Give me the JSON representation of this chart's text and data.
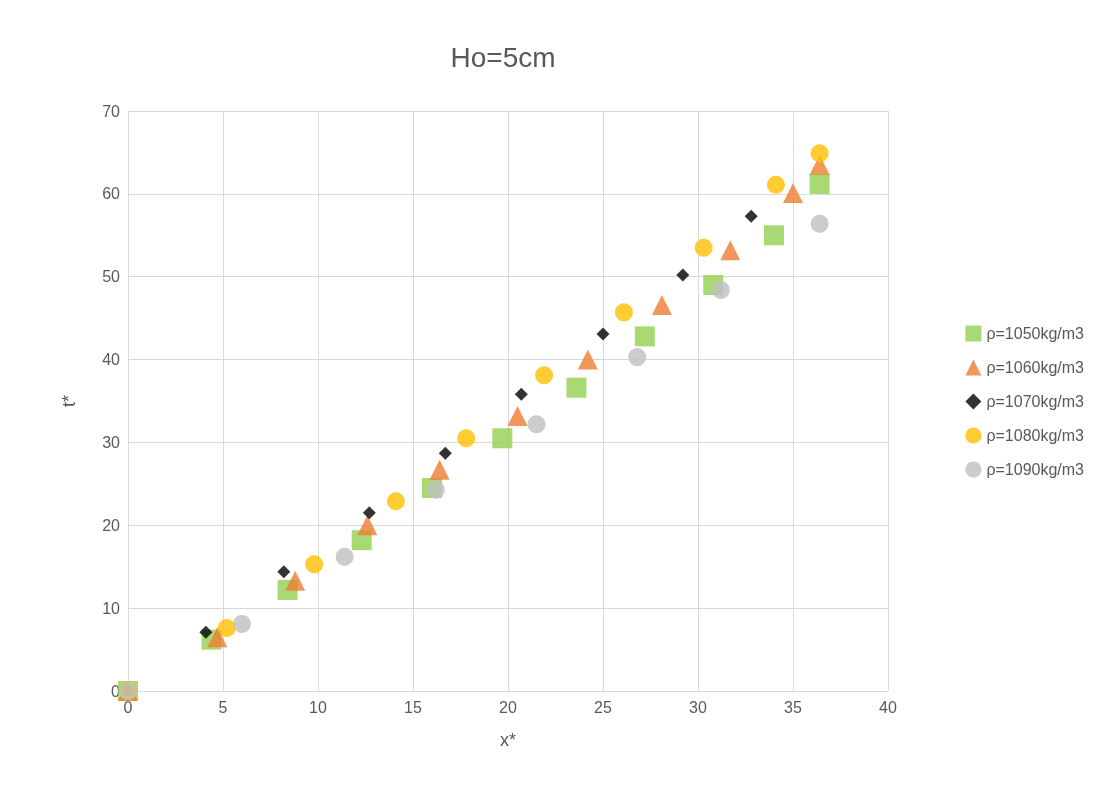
{
  "chart_data": {
    "type": "scatter",
    "title": "Ho=5cm",
    "xlabel": "x*",
    "ylabel": "t*",
    "xlim": [
      0,
      40
    ],
    "xticks": [
      0,
      5,
      10,
      15,
      20,
      25,
      30,
      35,
      40
    ],
    "ylim": [
      0,
      70
    ],
    "yticks": [
      0,
      10,
      20,
      30,
      40,
      50,
      60,
      70
    ],
    "grid": true,
    "legend": "right",
    "series": [
      {
        "name": "ρ=1050kg/m3",
        "color": "#92d050",
        "marker": "square",
        "x": [
          0,
          4.4,
          8.4,
          12.3,
          16.0,
          19.7,
          23.6,
          27.2,
          30.8,
          34.0,
          36.4
        ],
        "values": [
          0,
          6.2,
          12.2,
          18.2,
          24.5,
          30.5,
          36.6,
          42.8,
          49.0,
          55.0,
          61.2
        ]
      },
      {
        "name": "ρ=1060kg/m3",
        "color": "#ed7d31",
        "marker": "triangle",
        "x": [
          0,
          4.7,
          8.8,
          12.6,
          16.4,
          20.5,
          24.2,
          28.1,
          31.7,
          35.0,
          36.4
        ],
        "values": [
          0,
          6.5,
          13.3,
          20.0,
          26.7,
          33.2,
          40.0,
          46.6,
          53.2,
          60.1,
          63.5
        ]
      },
      {
        "name": "ρ=1070kg/m3",
        "color": "#000000",
        "marker": "diamond",
        "x": [
          0,
          4.1,
          8.2,
          12.7,
          16.7,
          20.7,
          25.0,
          29.2,
          32.8
        ],
        "values": [
          0,
          7.1,
          14.4,
          21.5,
          28.7,
          35.8,
          43.1,
          50.2,
          57.3
        ]
      },
      {
        "name": "ρ=1080kg/m3",
        "color": "#ffc000",
        "marker": "circle",
        "x": [
          0,
          5.2,
          9.8,
          14.1,
          17.8,
          21.9,
          26.1,
          30.3,
          34.1,
          36.4
        ],
        "values": [
          0,
          7.6,
          15.3,
          22.9,
          30.5,
          38.1,
          45.7,
          53.5,
          61.1,
          64.9
        ]
      },
      {
        "name": "ρ=1090kg/m3",
        "color": "#bfbfbf",
        "marker": "circle",
        "x": [
          0,
          6.0,
          11.4,
          16.2,
          21.5,
          26.8,
          31.2,
          36.4
        ],
        "values": [
          0,
          8.1,
          16.2,
          24.3,
          32.2,
          40.3,
          48.4,
          56.4
        ]
      }
    ]
  }
}
